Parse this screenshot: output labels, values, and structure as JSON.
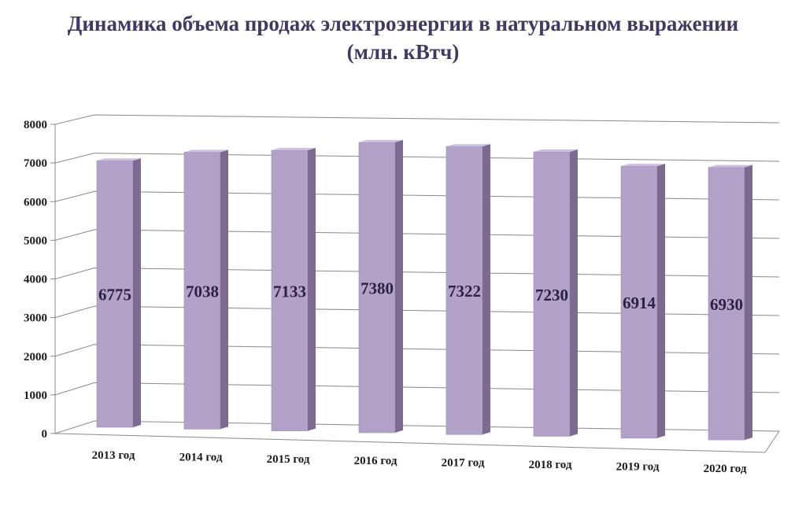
{
  "title_line1": "Динамика объема продаж электроэнергии в натуральном выражении",
  "title_line2": "(млн. кВтч)",
  "colors": {
    "bar_front": "#b3a2c8",
    "bar_side": "#7d6b8f",
    "bar_top": "#cdbfe0",
    "grid": "#8a8a8a",
    "title": "#403a60"
  },
  "chart_data": {
    "type": "bar",
    "categories": [
      "2013 год",
      "2014 год",
      "2015 год",
      "2016 год",
      "2017 год",
      "2018 год",
      "2019 год",
      "2020 год"
    ],
    "values": [
      6775,
      7038,
      7133,
      7380,
      7322,
      7230,
      6914,
      6930
    ],
    "ylim": [
      0,
      8000
    ],
    "yticks": [
      "0",
      "1000",
      "2000",
      "3000",
      "4000",
      "5000",
      "6000",
      "7000",
      "8000"
    ],
    "grid": true,
    "data_labels": [
      "6775",
      "7038",
      "7133",
      "7380",
      "7322",
      "7230",
      "6914",
      "6930"
    ],
    "style": "3d-perspective"
  }
}
